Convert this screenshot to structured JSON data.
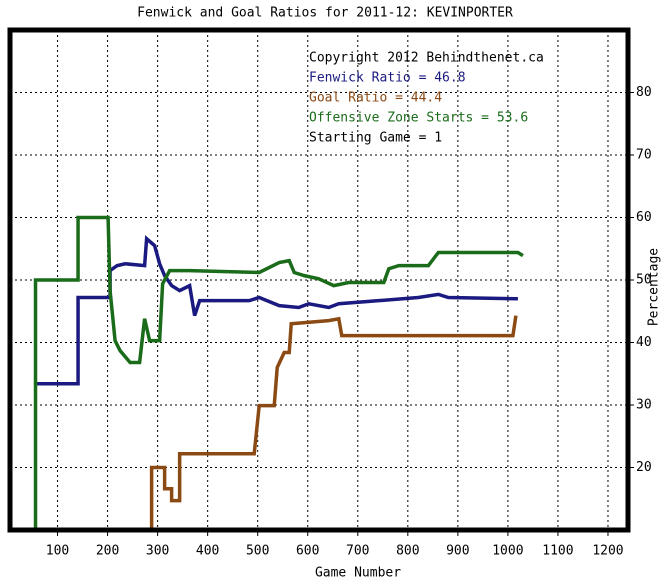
{
  "chart_data": {
    "type": "line",
    "title": "Fenwick and Goal Ratios for 2011-12: KEVINPORTER",
    "x_label": "Game Number",
    "y_label": "Percentage",
    "annotations": [
      "Copyright 2012 Behindthenet.ca",
      "Starting Game = 1"
    ],
    "xlim": [
      5,
      1240
    ],
    "ylim": [
      10,
      90
    ],
    "xticks": [
      100,
      200,
      300,
      400,
      500,
      600,
      700,
      800,
      900,
      1000,
      1100,
      1200
    ],
    "yticks": [
      20,
      30,
      40,
      50,
      60,
      70,
      80
    ],
    "grid": true,
    "series": [
      {
        "name": "Fenwick Ratio = 46.8",
        "color": "#1a1a80",
        "x": [
          56,
          141,
          141,
          205,
          205,
          219,
          235,
          274,
          278,
          294,
          304,
          314,
          328,
          344,
          364,
          374,
          384,
          483,
          503,
          543,
          582,
          602,
          642,
          662,
          742,
          821,
          861,
          881,
          1020
        ],
        "values": [
          33.4,
          33.4,
          47.2,
          47.2,
          51.5,
          52.3,
          52.6,
          52.3,
          56.6,
          55.5,
          52.6,
          50.7,
          49.1,
          48.3,
          49.1,
          44.3,
          46.7,
          46.7,
          47.2,
          45.9,
          45.6,
          46.2,
          45.6,
          46.2,
          46.7,
          47.2,
          47.7,
          47.2,
          47.0
        ]
      },
      {
        "name": "Goal Ratio = 44.4",
        "color": "#8b4a14",
        "x": [
          288,
          288,
          314,
          314,
          328,
          328,
          344,
          344,
          493,
          503,
          533,
          539,
          553,
          563,
          567,
          642,
          662,
          668,
          1010,
          1016
        ],
        "values": [
          10,
          20,
          20,
          16.6,
          16.6,
          14.7,
          14.7,
          22.2,
          22.2,
          29.9,
          29.9,
          36,
          38.4,
          38.4,
          43,
          43.5,
          43.8,
          41.1,
          41.1,
          44.3
        ]
      },
      {
        "name": "Offensive Zone Starts = 53.6",
        "color": "#1a6b1a",
        "x": [
          56,
          56,
          141,
          141,
          201,
          205,
          215,
          225,
          245,
          264,
          274,
          284,
          304,
          310,
          324,
          364,
          503,
          543,
          563,
          573,
          593,
          622,
          652,
          682,
          752,
          762,
          782,
          841,
          861,
          1020,
          1030
        ],
        "values": [
          10,
          50,
          50,
          60,
          60,
          48.3,
          40.3,
          38.7,
          36.8,
          36.8,
          43.8,
          40.3,
          40.3,
          49.4,
          51.5,
          51.5,
          51.2,
          52.8,
          53.1,
          51.2,
          50.7,
          50.2,
          49.1,
          49.6,
          49.6,
          51.8,
          52.3,
          52.3,
          54.4,
          54.4,
          53.9
        ]
      }
    ]
  }
}
